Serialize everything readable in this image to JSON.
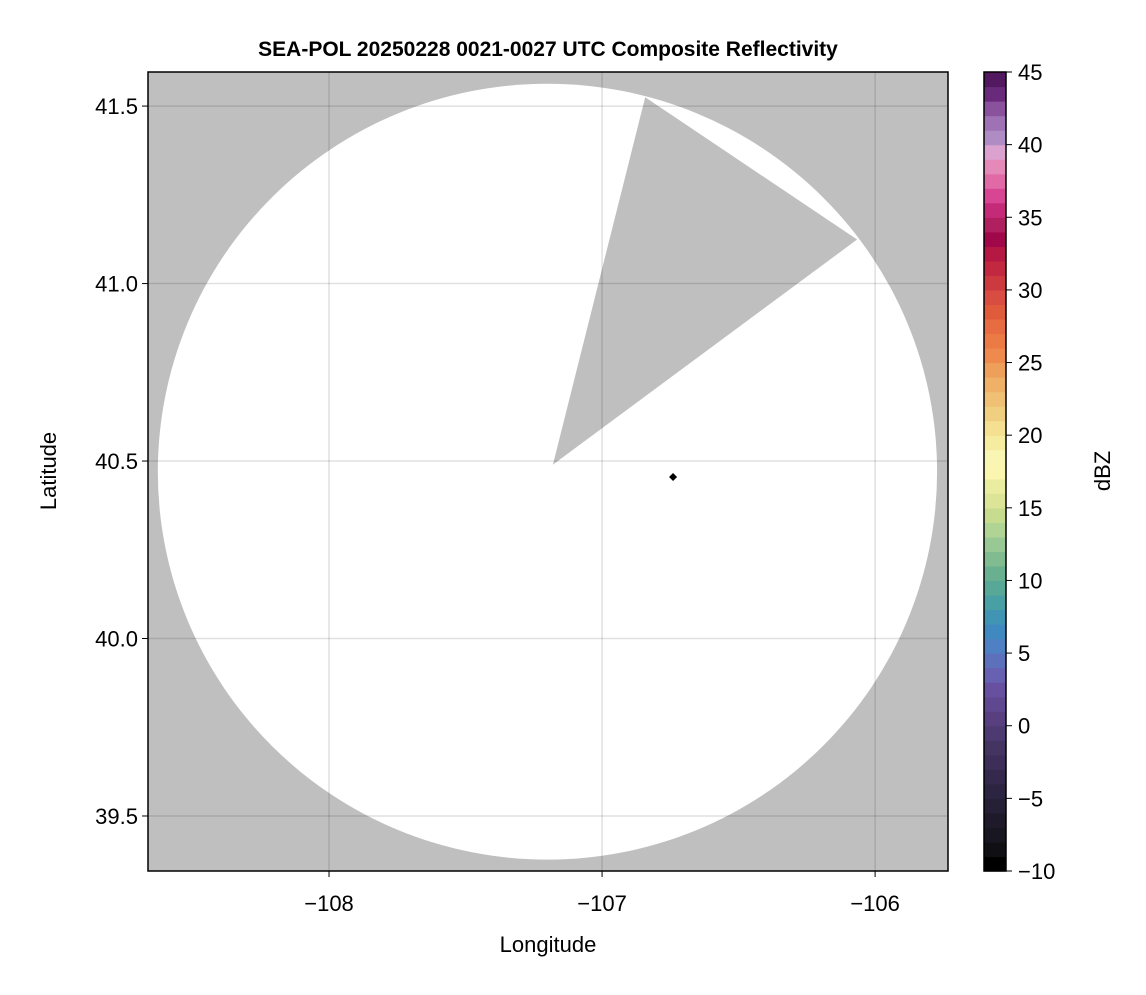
{
  "chart_data": {
    "type": "heatmap",
    "title": "SEA-POL 20250228 0021-0027 UTC Composite Reflectivity",
    "xlabel": "Longitude",
    "ylabel": "Latitude",
    "xlim": [
      -108.663,
      -105.733
    ],
    "ylim": [
      39.345,
      41.596
    ],
    "xticks": [
      -108,
      -107,
      -106
    ],
    "xtick_labels": [
      "−108",
      "−107",
      "−106"
    ],
    "yticks": [
      39.5,
      40.0,
      40.5,
      41.0,
      41.5
    ],
    "ytick_labels": [
      "39.5",
      "40.0",
      "40.5",
      "41.0",
      "41.5"
    ],
    "grid": true,
    "background_color": "#bfbfbf",
    "coverage": {
      "shape": "disc-minus-wedge",
      "fill": "#ffffff",
      "center": [
        -107.2,
        40.47
      ],
      "radius_lon": 1.427,
      "radius_lat": 1.093,
      "blocked_wedge": {
        "apex": [
          -107.18,
          40.49
        ],
        "edge1": [
          -106.842,
          41.525
        ],
        "edge2": [
          -106.066,
          41.124
        ]
      }
    },
    "marker": {
      "lon": -106.74,
      "lat": 40.455,
      "shape": "diamond",
      "color": "#000000"
    },
    "colorbar": {
      "label": "dBZ",
      "range": [
        -10,
        45
      ],
      "ticks": [
        -10,
        -5,
        0,
        5,
        10,
        15,
        20,
        25,
        30,
        35,
        40,
        45
      ],
      "tick_labels": [
        "−10",
        "−5",
        "0",
        "5",
        "10",
        "15",
        "20",
        "25",
        "30",
        "35",
        "40",
        "45"
      ],
      "colors_bottom_to_top": [
        "#000000",
        "#101014",
        "#181620",
        "#1e1a2a",
        "#262036",
        "#2c2440",
        "#34284c",
        "#3c2e58",
        "#443462",
        "#4c3a70",
        "#584080",
        "#604890",
        "#6850a0",
        "#6860b0",
        "#5c70bc",
        "#5080c4",
        "#4088c0",
        "#4094b4",
        "#48a0a4",
        "#58a898",
        "#68b090",
        "#80bc90",
        "#98c894",
        "#b0d494",
        "#c8dc90",
        "#dce498",
        "#eaeca0",
        "#faf6b0",
        "#f9f6b4",
        "#f6eca0",
        "#f4e090",
        "#f0d080",
        "#f0c074",
        "#efb068",
        "#eea05a",
        "#ee8a4e",
        "#ec7a45",
        "#e86c42",
        "#e05a3c",
        "#d94c42",
        "#cc3a40",
        "#c2283f",
        "#b41843",
        "#a0084a",
        "#b0205f",
        "#c42a78",
        "#d84593",
        "#e06aa6",
        "#e58ab8",
        "#dba2d0",
        "#b08cc4",
        "#9e72b4",
        "#8a519c",
        "#6a2a7c",
        "#521860"
      ]
    }
  }
}
